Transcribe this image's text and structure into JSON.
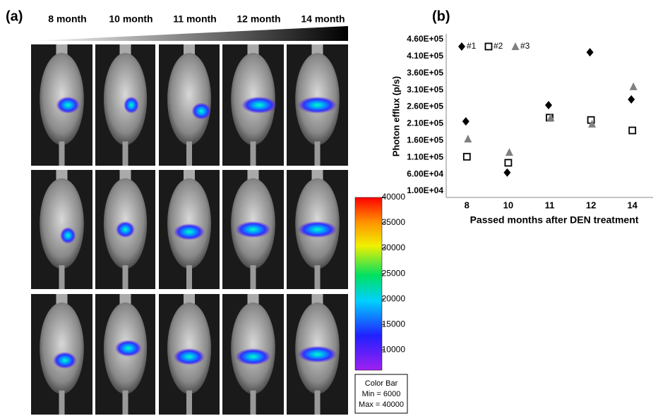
{
  "panel_a": {
    "label": "(a)",
    "columns": [
      "8 month",
      "10 month",
      "11 month",
      "12 month",
      "14 month"
    ],
    "colorbar": {
      "lim": [
        6000,
        40000
      ],
      "ticks": [
        40000,
        35000,
        30000,
        25000,
        20000,
        15000,
        10000
      ],
      "title": "Color Bar",
      "min_label": "Min = 6000",
      "max_label": "Max = 40000"
    }
  },
  "chart_data": {
    "type": "scatter",
    "label": "(b)",
    "ylabel": "Photon efflux (p/s)",
    "xlabel": "Passed months after DEN treatment",
    "categories": [
      "8",
      "10",
      "11",
      "12",
      "14"
    ],
    "series": [
      {
        "name": "#1",
        "color": "#000000",
        "marker": "diamond",
        "values": [
          217000,
          65000,
          265000,
          422000,
          282000
        ]
      },
      {
        "name": "#2",
        "color": "#000000",
        "marker": "square",
        "values": [
          112000,
          94000,
          228000,
          221000,
          190000
        ]
      },
      {
        "name": "#3",
        "color": "#808080",
        "marker": "triangle",
        "values": [
          165000,
          125000,
          228000,
          209000,
          320000
        ]
      }
    ],
    "ylim": [
      10000,
      460000
    ],
    "yticks": [
      {
        "value": 10000,
        "label": "1.00E+04"
      },
      {
        "value": 60000,
        "label": "6.00E+04"
      },
      {
        "value": 110000,
        "label": "1.10E+05"
      },
      {
        "value": 160000,
        "label": "1.60E+05"
      },
      {
        "value": 210000,
        "label": "2.10E+05"
      },
      {
        "value": 260000,
        "label": "2.60E+05"
      },
      {
        "value": 310000,
        "label": "3.10E+05"
      },
      {
        "value": 360000,
        "label": "3.60E+05"
      },
      {
        "value": 410000,
        "label": "4.10E+05"
      },
      {
        "value": 460000,
        "label": "4.60E+05"
      }
    ],
    "grid": false
  }
}
